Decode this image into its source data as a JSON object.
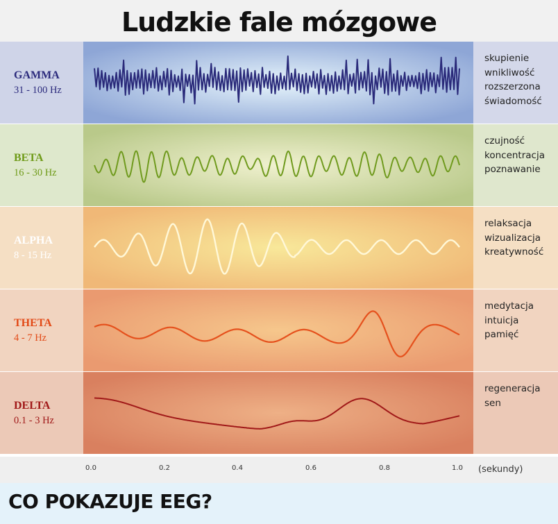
{
  "title": "Ludzkie fale mózgowe",
  "waves": [
    {
      "name": "GAMMA",
      "freq": "31 - 100 Hz",
      "desc": [
        "skupienie",
        "wnikliwość",
        "rozszerzona",
        "świadomość"
      ],
      "label_color": "#2b2a7c",
      "line_color": "#2a2a7a",
      "left_bg": "#cfd4e8",
      "right_bg": "#d4d8ea",
      "panel_center": "#e6f4fb",
      "panel_edge": "#8ea6d6"
    },
    {
      "name": "BETA",
      "freq": "16 - 30 Hz",
      "desc": [
        "czujność",
        "koncentracja",
        "poznawanie"
      ],
      "label_color": "#6e9a17",
      "line_color": "#6f9a1d",
      "left_bg": "#dee8cc",
      "right_bg": "#dfe7cd",
      "panel_center": "#f0f1cf",
      "panel_edge": "#b9c98a"
    },
    {
      "name": "ALPHA",
      "freq": "8 - 15 Hz",
      "desc": [
        "relaksacja",
        "wizualizacja",
        "kreatywność"
      ],
      "label_color": "#ffffff",
      "line_color": "#fff8d8",
      "left_bg": "#f5dfc4",
      "right_bg": "#f5dfc4",
      "panel_center": "#f8e89a",
      "panel_edge": "#f0b877"
    },
    {
      "name": "THETA",
      "freq": "4 - 7 Hz",
      "desc": [
        "medytacja",
        "intuicja",
        "pamięć"
      ],
      "label_color": "#e24a17",
      "line_color": "#e5501c",
      "left_bg": "#f1d4c0",
      "right_bg": "#f1d4c0",
      "panel_center": "#f6c78c",
      "panel_edge": "#ea9a70"
    },
    {
      "name": "DELTA",
      "freq": "0.1 - 3 Hz",
      "desc": [
        "regeneracja",
        "sen"
      ],
      "label_color": "#a01818",
      "line_color": "#a01818",
      "left_bg": "#ecc9b7",
      "right_bg": "#ecc9b7",
      "panel_center": "#eeb086",
      "panel_edge": "#d9805f"
    }
  ],
  "axis": {
    "ticks": [
      "0.0",
      "0.2",
      "0.4",
      "0.6",
      "0.8",
      "1.0"
    ],
    "unit": "(sekundy)"
  },
  "footer": "CO POKAZUJE EEG?"
}
